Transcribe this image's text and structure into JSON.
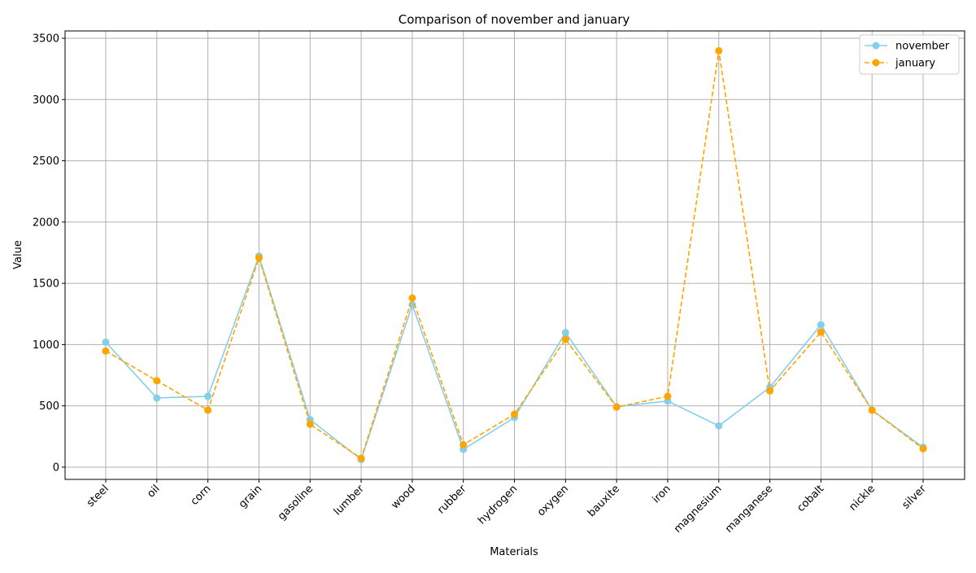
{
  "chart_data": {
    "type": "line",
    "title": "Comparison of november and january",
    "xlabel": "Materials",
    "ylabel": "Value",
    "categories": [
      "steel",
      "oil",
      "corn",
      "grain",
      "gasoline",
      "lumber",
      "wood",
      "rubber",
      "hydrogen",
      "oxygen",
      "bauxite",
      "iron",
      "magnesium",
      "manganese",
      "cobalt",
      "nickle",
      "silver"
    ],
    "ylim": [
      -100,
      3560
    ],
    "yticks": [
      0,
      500,
      1000,
      1500,
      2000,
      2500,
      3000,
      3500
    ],
    "grid": true,
    "legend_position": "top-right",
    "series": [
      {
        "name": "november",
        "color": "#87ceeb",
        "line_style": "solid",
        "marker": "circle",
        "values": [
          1020,
          565,
          578,
          1722,
          388,
          62,
          1325,
          145,
          405,
          1098,
          493,
          540,
          337,
          652,
          1162,
          465,
          162
        ]
      },
      {
        "name": "january",
        "color": "#ffa500",
        "line_style": "dashed",
        "marker": "circle",
        "values": [
          948,
          705,
          465,
          1708,
          350,
          72,
          1380,
          183,
          432,
          1043,
          490,
          578,
          3398,
          622,
          1102,
          465,
          150
        ]
      }
    ]
  },
  "colors": {
    "grid": "#b0b0b0",
    "axis": "#000000"
  }
}
